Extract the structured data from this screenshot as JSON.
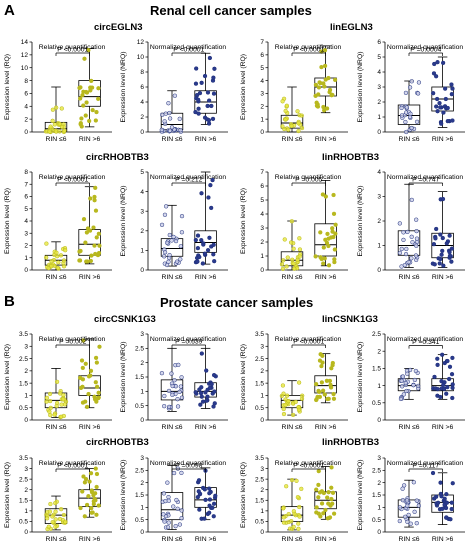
{
  "sections": [
    {
      "letter": "A",
      "title": "Renal cell cancer samples"
    },
    {
      "letter": "B",
      "title": "Prostate cancer samples"
    }
  ],
  "gene_titles": [
    "circEGLN3",
    "linEGLN3",
    "circRHOBTB3",
    "linRHOBTB3",
    "circCSNK1G3",
    "linCSNK1G3",
    "circRHOBTB3",
    "linRHOBTB3"
  ],
  "colors": {
    "yellow_fill": "#e6e63c",
    "yellow_point": "#b8b81e",
    "navy_fill": "#2a3a8c",
    "navy_point": "#1f2f7a"
  },
  "chart_data": [
    {
      "type": "box",
      "section": "A",
      "gene": "circEGLN3",
      "subtitle": "Relative quantification",
      "ylabel": "Expression level (RQ)",
      "ylim": [
        0,
        14
      ],
      "yticks": [
        0,
        2,
        4,
        6,
        8,
        10,
        12,
        14
      ],
      "categories": [
        "RIN ≤6",
        "RIN >6"
      ],
      "pvalue": "P <0.0001",
      "palette": "yellow",
      "boxes": [
        {
          "min": 0,
          "q1": 0.1,
          "median": 0.5,
          "q3": 1.5,
          "max": 7
        },
        {
          "min": 0.8,
          "q1": 4,
          "median": 5.5,
          "q3": 8,
          "max": 13
        }
      ]
    },
    {
      "type": "box",
      "section": "A",
      "gene": "circEGLN3",
      "subtitle": "Normalized quantification",
      "ylabel": "Expression level (NRQ)",
      "ylim": [
        0,
        12
      ],
      "yticks": [
        0,
        2,
        4,
        6,
        8,
        10,
        12
      ],
      "categories": [
        "RIN ≤6",
        "RIN >6"
      ],
      "pvalue": "P <0.0001",
      "palette": "navy",
      "boxes": [
        {
          "min": 0,
          "q1": 0.3,
          "median": 1,
          "q3": 2.5,
          "max": 5.5
        },
        {
          "min": 1,
          "q1": 2.5,
          "median": 4,
          "q3": 5.5,
          "max": 10.5
        }
      ]
    },
    {
      "type": "box",
      "section": "A",
      "gene": "linEGLN3",
      "subtitle": "Relative quantification",
      "ylabel": "Expression level (RQ)",
      "ylim": [
        0,
        7
      ],
      "yticks": [
        0,
        1,
        2,
        3,
        4,
        5,
        6,
        7
      ],
      "categories": [
        "RIN ≤6",
        "RIN >6"
      ],
      "pvalue": "P <0.0001",
      "palette": "yellow",
      "boxes": [
        {
          "min": 0,
          "q1": 0.3,
          "median": 0.7,
          "q3": 1.3,
          "max": 3.5
        },
        {
          "min": 1.5,
          "q1": 2.8,
          "median": 3.5,
          "q3": 4.2,
          "max": 6.7
        }
      ]
    },
    {
      "type": "box",
      "section": "A",
      "gene": "linEGLN3",
      "subtitle": "Normalized quantification",
      "ylabel": "Expression level (NRQ)",
      "ylim": [
        0,
        6
      ],
      "yticks": [
        0,
        1,
        2,
        3,
        4,
        5,
        6
      ],
      "categories": [
        "RIN ≤6",
        "RIN >6"
      ],
      "pvalue": "P =0.0004",
      "palette": "navy",
      "boxes": [
        {
          "min": 0,
          "q1": 0.5,
          "median": 1.1,
          "q3": 1.8,
          "max": 3.4
        },
        {
          "min": 0.3,
          "q1": 1.4,
          "median": 2.2,
          "q3": 3,
          "max": 5
        }
      ]
    },
    {
      "type": "box",
      "section": "A",
      "gene": "circRHOBTB3",
      "subtitle": "Relative quantification",
      "ylabel": "Expression level (RQ)",
      "ylim": [
        0,
        8
      ],
      "yticks": [
        0,
        1,
        2,
        3,
        4,
        5,
        6,
        7,
        8
      ],
      "categories": [
        "RIN ≤6",
        "RIN >6"
      ],
      "pvalue": "P <0.0001",
      "palette": "yellow",
      "boxes": [
        {
          "min": 0,
          "q1": 0.4,
          "median": 0.8,
          "q3": 1.2,
          "max": 2.3
        },
        {
          "min": 0.5,
          "q1": 1.2,
          "median": 2.1,
          "q3": 3.3,
          "max": 6.8
        }
      ]
    },
    {
      "type": "box",
      "section": "A",
      "gene": "circRHOBTB3",
      "subtitle": "Normalized quantification",
      "ylabel": "Expression level (NRQ)",
      "ylim": [
        0,
        5
      ],
      "yticks": [
        0,
        1,
        2,
        3,
        4,
        5
      ],
      "categories": [
        "RIN ≤6",
        "RIN >6"
      ],
      "pvalue": "P =0.212",
      "palette": "navy",
      "boxes": [
        {
          "min": 0.2,
          "q1": 0.7,
          "median": 1.1,
          "q3": 1.6,
          "max": 3.3
        },
        {
          "min": 0.3,
          "q1": 0.9,
          "median": 1.4,
          "q3": 2,
          "max": 5
        }
      ]
    },
    {
      "type": "box",
      "section": "A",
      "gene": "linRHOBTB3",
      "subtitle": "Relative quantification",
      "ylabel": "Expression level (RQ)",
      "ylim": [
        0,
        7
      ],
      "yticks": [
        0,
        1,
        2,
        3,
        4,
        5,
        6,
        7
      ],
      "categories": [
        "RIN ≤6",
        "RIN >6"
      ],
      "pvalue": "P =0.005",
      "palette": "yellow",
      "boxes": [
        {
          "min": 0,
          "q1": 0.3,
          "median": 0.7,
          "q3": 1.3,
          "max": 3.5
        },
        {
          "min": 0.3,
          "q1": 1,
          "median": 1.8,
          "q3": 3.3,
          "max": 6.4
        }
      ]
    },
    {
      "type": "box",
      "section": "A",
      "gene": "linRHOBTB3",
      "subtitle": "Normalized quantification",
      "ylabel": "Expression level (NRQ)",
      "ylim": [
        0,
        4
      ],
      "yticks": [
        0,
        1,
        2,
        3,
        4
      ],
      "categories": [
        "RIN ≤6",
        "RIN >6"
      ],
      "pvalue": "P =0.747",
      "palette": "navy",
      "boxes": [
        {
          "min": 0.1,
          "q1": 0.6,
          "median": 1,
          "q3": 1.6,
          "max": 3.5
        },
        {
          "min": 0.1,
          "q1": 0.5,
          "median": 1,
          "q3": 1.5,
          "max": 3.2
        }
      ]
    },
    {
      "type": "box",
      "section": "B",
      "gene": "circCSNK1G3",
      "subtitle": "Relative quantification",
      "ylabel": "Expression level (RQ)",
      "ylim": [
        0,
        3.5
      ],
      "yticks": [
        0,
        0.5,
        1,
        1.5,
        2,
        2.5,
        3,
        3.5
      ],
      "categories": [
        "RIN ≤6",
        "RIN >6"
      ],
      "pvalue": "P =0.002",
      "palette": "yellow",
      "boxes": [
        {
          "min": 0.1,
          "q1": 0.5,
          "median": 0.8,
          "q3": 1.1,
          "max": 2.1
        },
        {
          "min": 0.5,
          "q1": 1,
          "median": 1.3,
          "q3": 1.8,
          "max": 3.3
        }
      ]
    },
    {
      "type": "box",
      "section": "B",
      "gene": "circCSNK1G3",
      "subtitle": "Normalized quantification",
      "ylabel": "Expression level (NRQ)",
      "ylim": [
        0,
        3
      ],
      "yticks": [
        0,
        0.5,
        1,
        1.5,
        2,
        2.5,
        3
      ],
      "categories": [
        "RIN ≤6",
        "RIN >6"
      ],
      "pvalue": "P =0.639",
      "palette": "navy",
      "boxes": [
        {
          "min": 0.3,
          "q1": 0.7,
          "median": 1,
          "q3": 1.4,
          "max": 2.5
        },
        {
          "min": 0.4,
          "q1": 0.8,
          "median": 1,
          "q3": 1.3,
          "max": 2.5
        }
      ]
    },
    {
      "type": "box",
      "section": "B",
      "gene": "linCSNK1G3",
      "subtitle": "Relative quantification",
      "ylabel": "Expression level (RQ)",
      "ylim": [
        0,
        3.5
      ],
      "yticks": [
        0,
        0.5,
        1,
        1.5,
        2,
        2.5,
        3,
        3.5
      ],
      "categories": [
        "RIN ≤6",
        "RIN >6"
      ],
      "pvalue": "P <0.0001",
      "palette": "yellow",
      "boxes": [
        {
          "min": 0.2,
          "q1": 0.5,
          "median": 0.8,
          "q3": 1,
          "max": 1.6
        },
        {
          "min": 0.7,
          "q1": 1.1,
          "median": 1.4,
          "q3": 1.8,
          "max": 2.7
        }
      ]
    },
    {
      "type": "box",
      "section": "B",
      "gene": "linCSNK1G3",
      "subtitle": "Normalized quantification",
      "ylabel": "Expression level (NRQ)",
      "ylim": [
        0,
        2.5
      ],
      "yticks": [
        0,
        0.5,
        1,
        1.5,
        2,
        2.5
      ],
      "categories": [
        "RIN ≤6",
        "RIN >6"
      ],
      "pvalue": "P =0.341",
      "palette": "navy",
      "boxes": [
        {
          "min": 0.6,
          "q1": 0.85,
          "median": 1,
          "q3": 1.2,
          "max": 1.5
        },
        {
          "min": 0.6,
          "q1": 0.85,
          "median": 1,
          "q3": 1.2,
          "max": 1.9
        }
      ]
    },
    {
      "type": "box",
      "section": "B",
      "gene": "circRHOBTB3",
      "subtitle": "Relative quantification",
      "ylabel": "Expression level (RQ)",
      "ylim": [
        0,
        3.5
      ],
      "yticks": [
        0,
        0.5,
        1,
        1.5,
        2,
        2.5,
        3,
        3.5
      ],
      "categories": [
        "RIN ≤6",
        "RIN >6"
      ],
      "pvalue": "P <0.0001",
      "palette": "yellow",
      "boxes": [
        {
          "min": 0.1,
          "q1": 0.4,
          "median": 0.8,
          "q3": 1.1,
          "max": 1.7
        },
        {
          "min": 0.7,
          "q1": 1.2,
          "median": 1.6,
          "q3": 2,
          "max": 3
        }
      ]
    },
    {
      "type": "box",
      "section": "B",
      "gene": "circRHOBTB3",
      "subtitle": "Normalized quantification",
      "ylabel": "Expression level (NRQ)",
      "ylim": [
        0,
        3
      ],
      "yticks": [
        0,
        0.5,
        1,
        1.5,
        2,
        2.5,
        3
      ],
      "categories": [
        "RIN ≤6",
        "RIN >6"
      ],
      "pvalue": "P =0.098",
      "palette": "navy",
      "boxes": [
        {
          "min": 0.1,
          "q1": 0.5,
          "median": 0.9,
          "q3": 1.6,
          "max": 2.7
        },
        {
          "min": 0.5,
          "q1": 1,
          "median": 1.3,
          "q3": 1.8,
          "max": 2.6
        }
      ]
    },
    {
      "type": "box",
      "section": "B",
      "gene": "linRHOBTB3",
      "subtitle": "Relative quantification",
      "ylabel": "Expression level (RQ)",
      "ylim": [
        0,
        3.5
      ],
      "yticks": [
        0,
        0.5,
        1,
        1.5,
        2,
        2.5,
        3,
        3.5
      ],
      "categories": [
        "RIN ≤6",
        "RIN >6"
      ],
      "pvalue": "P <0.0001",
      "palette": "yellow",
      "boxes": [
        {
          "min": 0.1,
          "q1": 0.5,
          "median": 0.8,
          "q3": 1.2,
          "max": 2.5
        },
        {
          "min": 0.6,
          "q1": 1.1,
          "median": 1.5,
          "q3": 1.9,
          "max": 3.1
        }
      ]
    },
    {
      "type": "box",
      "section": "B",
      "gene": "linRHOBTB3",
      "subtitle": "Normalized quantification",
      "ylabel": "Expression level (NRQ)",
      "ylim": [
        0,
        3
      ],
      "yticks": [
        0,
        0.5,
        1,
        1.5,
        2,
        2.5,
        3
      ],
      "categories": [
        "RIN ≤6",
        "RIN >6"
      ],
      "pvalue": "P =0.117",
      "palette": "navy",
      "boxes": [
        {
          "min": 0.2,
          "q1": 0.6,
          "median": 1,
          "q3": 1.3,
          "max": 2.1
        },
        {
          "min": 0.3,
          "q1": 0.8,
          "median": 1.2,
          "q3": 1.5,
          "max": 2.4
        }
      ]
    }
  ]
}
